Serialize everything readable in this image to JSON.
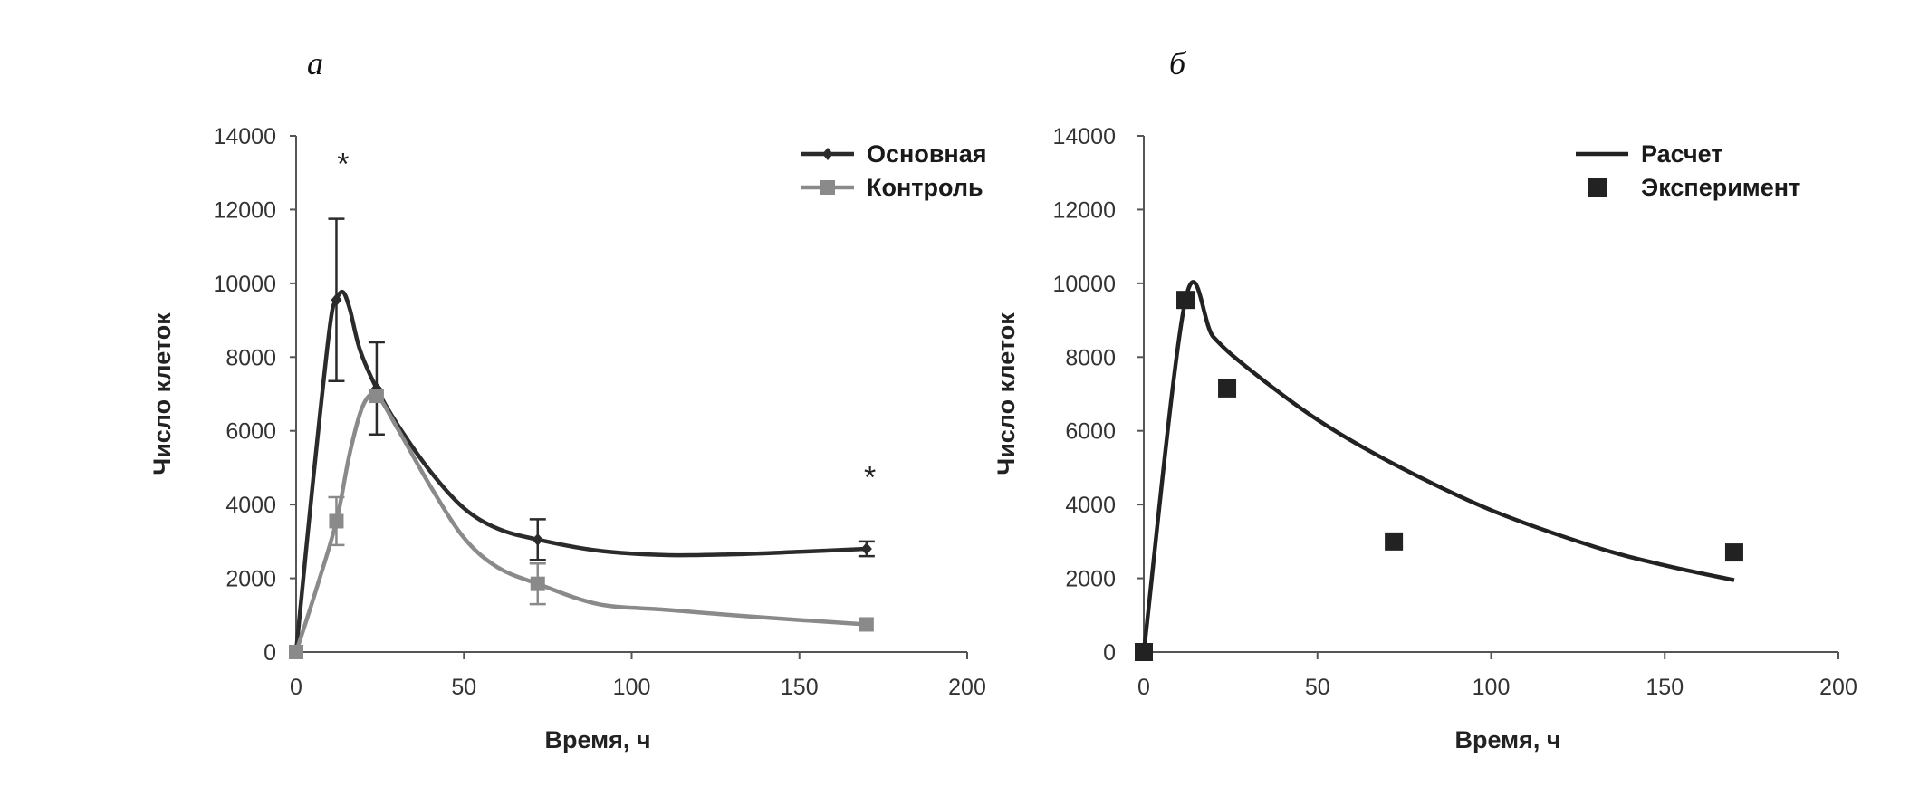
{
  "chart_data": [
    {
      "panel_label": "а",
      "type": "line",
      "xlabel": "Время, ч",
      "ylabel": "Число клеток",
      "xlim": [
        0,
        200
      ],
      "ylim": [
        0,
        14000
      ],
      "xticks": [
        "0",
        "50",
        "100",
        "150",
        "200"
      ],
      "yticks": [
        "0",
        "2000",
        "4000",
        "6000",
        "8000",
        "10000",
        "12000",
        "14000"
      ],
      "grid": false,
      "legend_position": "top-right",
      "series": [
        {
          "name": "Основная",
          "color": "#2b2b2b",
          "marker": "diamond",
          "x": [
            0,
            12,
            24,
            72,
            170
          ],
          "y": [
            0,
            9550,
            7150,
            3050,
            2800
          ],
          "error": [
            0,
            2200,
            1250,
            550,
            200
          ],
          "smooth_curve": [
            [
              0,
              0
            ],
            [
              5,
              4600
            ],
            [
              10,
              8800
            ],
            [
              12,
              9550
            ],
            [
              14,
              9760
            ],
            [
              16,
              9300
            ],
            [
              19,
              8200
            ],
            [
              24,
              7150
            ],
            [
              30,
              6200
            ],
            [
              40,
              4900
            ],
            [
              50,
              3900
            ],
            [
              60,
              3350
            ],
            [
              72,
              3050
            ],
            [
              90,
              2750
            ],
            [
              110,
              2630
            ],
            [
              130,
              2650
            ],
            [
              150,
              2720
            ],
            [
              170,
              2800
            ]
          ]
        },
        {
          "name": "Контроль",
          "color": "#8a8a8a",
          "marker": "square",
          "x": [
            0,
            12,
            24,
            72,
            170
          ],
          "y": [
            0,
            3550,
            6950,
            1850,
            750
          ],
          "error": [
            0,
            650,
            0,
            550,
            0
          ],
          "smooth_curve": [
            [
              0,
              0
            ],
            [
              6,
              1700
            ],
            [
              12,
              3550
            ],
            [
              16,
              5400
            ],
            [
              20,
              6700
            ],
            [
              24,
              6950
            ],
            [
              30,
              6100
            ],
            [
              40,
              4500
            ],
            [
              50,
              3100
            ],
            [
              60,
              2300
            ],
            [
              72,
              1850
            ],
            [
              90,
              1300
            ],
            [
              110,
              1150
            ],
            [
              130,
              1000
            ],
            [
              150,
              870
            ],
            [
              170,
              750
            ]
          ]
        }
      ],
      "annotations": [
        {
          "text": "*",
          "x": 14,
          "y": 13500
        },
        {
          "text": "*",
          "x": 171,
          "y": 5000
        }
      ]
    },
    {
      "panel_label": "б",
      "type": "line",
      "xlabel": "Время, ч",
      "ylabel": "Число клеток",
      "xlim": [
        0,
        200
      ],
      "ylim": [
        0,
        14000
      ],
      "xticks": [
        "0",
        "50",
        "100",
        "150",
        "200"
      ],
      "yticks": [
        "0",
        "2000",
        "4000",
        "6000",
        "8000",
        "10000",
        "12000",
        "14000"
      ],
      "grid": false,
      "legend_position": "top-right",
      "series": [
        {
          "name": "Расчет",
          "color": "#222222",
          "kind": "line",
          "x": [
            0,
            12,
            20,
            30,
            50,
            72,
            100,
            130,
            150,
            170
          ],
          "y": [
            0,
            9550,
            8550,
            7700,
            6300,
            5100,
            3850,
            2850,
            2350,
            1950
          ]
        },
        {
          "name": "Эксперимент",
          "color": "#222222",
          "kind": "scatter",
          "marker": "square",
          "x": [
            0,
            12,
            24,
            72,
            170
          ],
          "y": [
            0,
            9550,
            7150,
            3000,
            2700
          ]
        }
      ]
    }
  ]
}
